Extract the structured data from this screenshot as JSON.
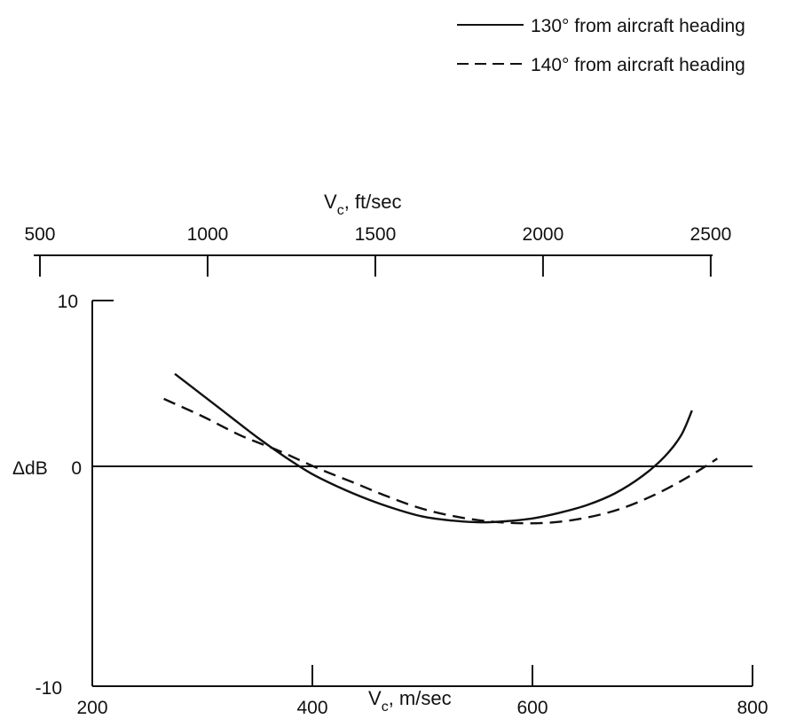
{
  "chart_data": {
    "type": "line",
    "title": "",
    "legend": {
      "placement": "top-right",
      "entries": [
        {
          "label": "130° from aircraft heading",
          "style": "solid"
        },
        {
          "label": "140° from aircraft heading",
          "style": "dashed"
        }
      ]
    },
    "x_axis": {
      "label_main": "V",
      "label_sub": "c",
      "label_rest": ", m/sec",
      "range": [
        200,
        800
      ],
      "ticks": [
        200,
        400,
        600,
        800
      ],
      "tick_labels": [
        "200",
        "400",
        "600",
        "800"
      ]
    },
    "x2_axis": {
      "label_main": "V",
      "label_sub": "c",
      "label_rest": ", ft/sec",
      "ticks": [
        500,
        1000,
        1500,
        2000,
        2500
      ],
      "tick_labels": [
        "500",
        "1000",
        "1500",
        "2000",
        "2500"
      ]
    },
    "y_axis": {
      "label": "ΔdB",
      "range": [
        -10,
        10
      ],
      "ticks": [
        -10,
        0,
        10
      ],
      "tick_labels": [
        "-10",
        "0",
        "10"
      ]
    },
    "zero_line": true,
    "grid": false,
    "series": [
      {
        "style": "solid",
        "x": [
          275,
          300,
          325,
          350,
          375,
          400,
          425,
          450,
          475,
          500,
          525,
          550,
          575,
          600,
          625,
          650,
          675,
          700,
          720,
          735,
          745
        ],
        "y": [
          6.2,
          5.1,
          4.0,
          2.9,
          1.9,
          1.0,
          0.3,
          -0.3,
          -0.8,
          -1.2,
          -1.4,
          -1.5,
          -1.45,
          -1.3,
          -1.0,
          -0.6,
          0.0,
          0.9,
          1.9,
          3.0,
          4.3
        ]
      },
      {
        "style": "dashed",
        "x": [
          265,
          300,
          335,
          370,
          405,
          440,
          470,
          500,
          530,
          560,
          590,
          620,
          650,
          680,
          710,
          740,
          768
        ],
        "y": [
          4.9,
          4.0,
          3.0,
          2.2,
          1.3,
          0.5,
          -0.2,
          -0.8,
          -1.2,
          -1.45,
          -1.55,
          -1.5,
          -1.25,
          -0.8,
          -0.1,
          0.8,
          1.8
        ]
      }
    ]
  }
}
